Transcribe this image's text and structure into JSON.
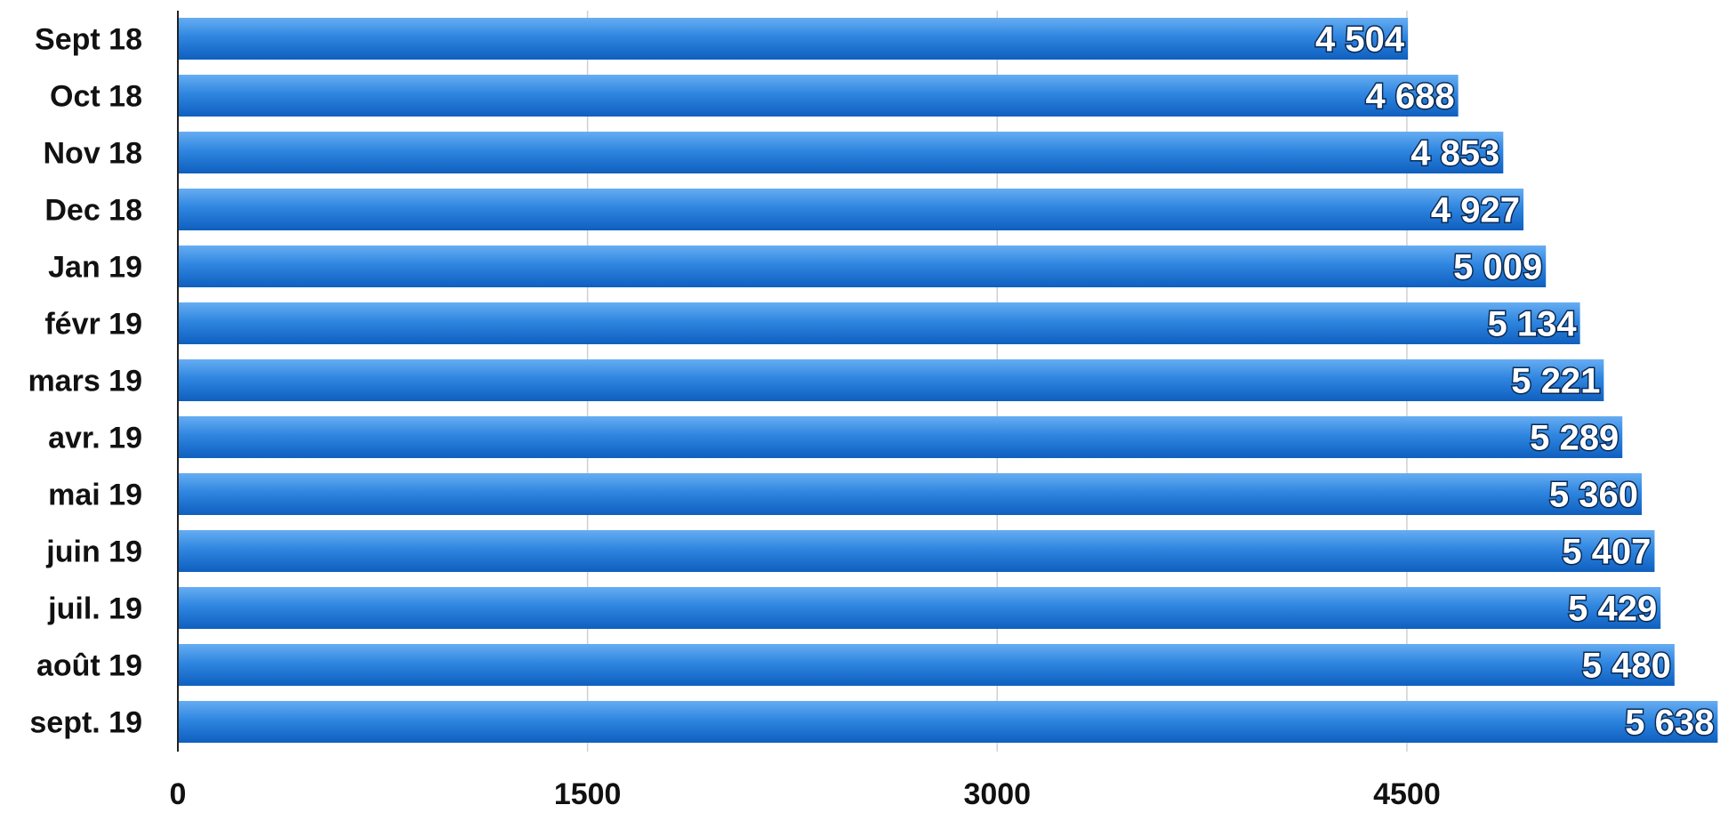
{
  "chart_data": {
    "type": "bar",
    "orientation": "horizontal",
    "categories": [
      "Sept 18",
      "Oct 18",
      "Nov 18",
      "Dec 18",
      "Jan 19",
      "févr 19",
      "mars 19",
      "avr. 19",
      "mai 19",
      "juin 19",
      "juil. 19",
      "août 19",
      "sept. 19"
    ],
    "values": [
      4504,
      4688,
      4853,
      4927,
      5009,
      5134,
      5221,
      5289,
      5360,
      5407,
      5429,
      5480,
      5638
    ],
    "data_labels": [
      "4 504",
      "4 688",
      "4 853",
      "4 927",
      "5 009",
      "5 134",
      "5 221",
      "5 289",
      "5 360",
      "5 407",
      "5 429",
      "5 480",
      "5 638"
    ],
    "x_ticks": [
      0,
      1500,
      3000,
      4500
    ],
    "x_tick_labels": [
      "0",
      "1500",
      "3000",
      "4500"
    ],
    "xlim": [
      0,
      5640
    ],
    "grid": "vertical",
    "bar_color": "#2f86e0",
    "bar_color_light": "#66adf2",
    "bar_color_dark": "#0f5fbf",
    "legend": "none"
  }
}
